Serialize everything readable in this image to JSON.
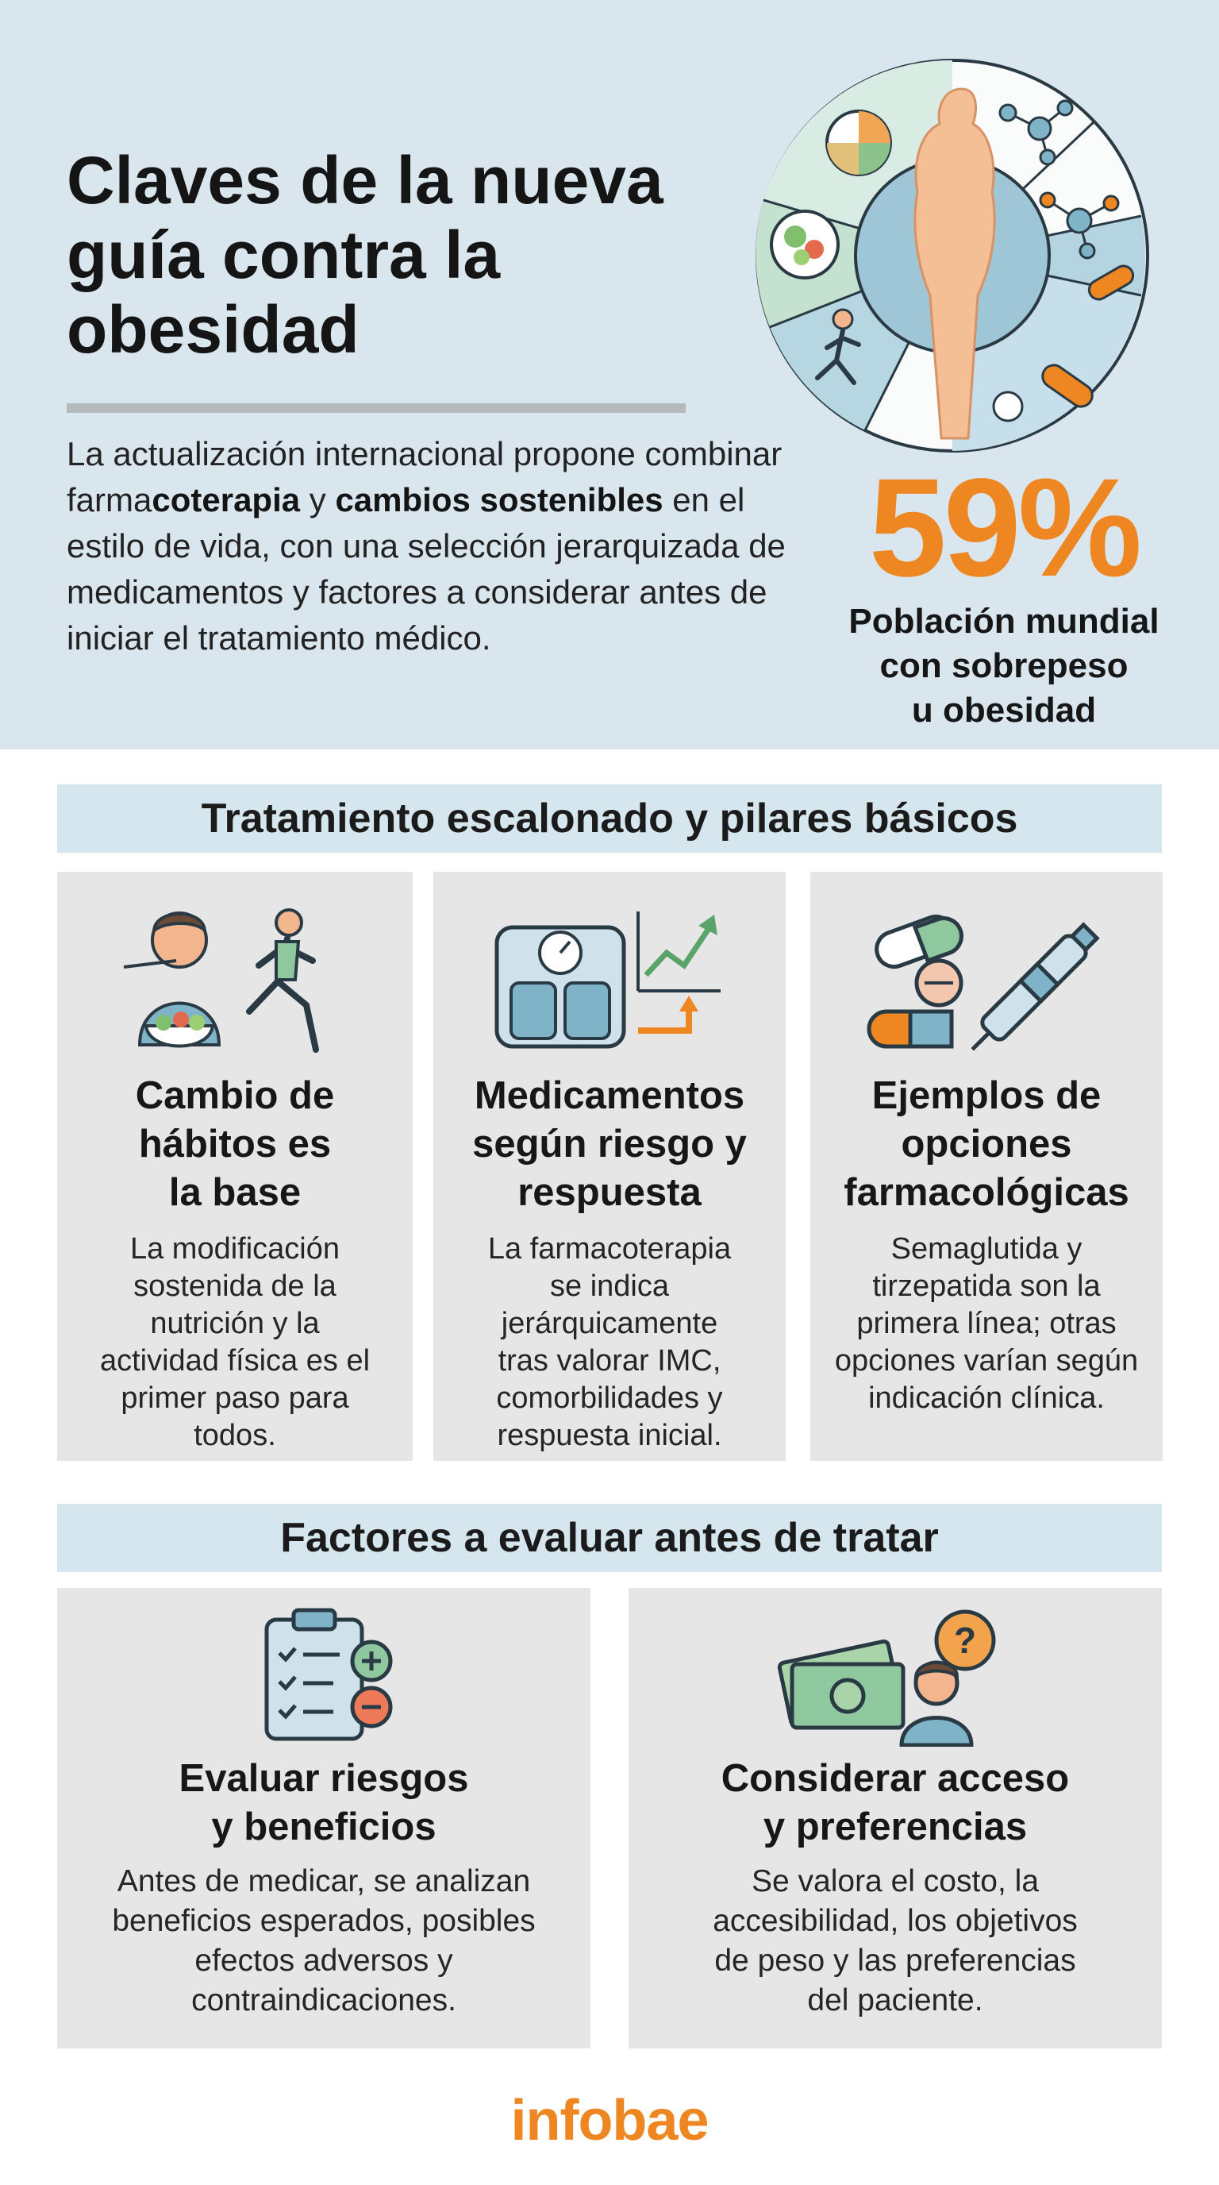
{
  "hero": {
    "title": "Claves de la nueva guía contra la obesidad",
    "body_parts": [
      {
        "text": "La actualización internacional propone combinar farma",
        "bold": false
      },
      {
        "text": "coterapia",
        "bold": true
      },
      {
        "text": " y ",
        "bold": false
      },
      {
        "text": "cambios sostenibles",
        "bold": true
      },
      {
        "text": " en el estilo de vida, con una selección jerarquizada de medicamentos y factores a considerar antes de iniciar el tratamiento médico.",
        "bold": false
      }
    ]
  },
  "stat": {
    "value": "59%",
    "label_lines": [
      "Población mundial",
      "con sobrepeso",
      "u obesidad"
    ]
  },
  "section1": {
    "heading": "Tratamiento escalonado y pilares básicos",
    "cards": [
      {
        "icon": "healthy-eating-and-running-icon",
        "title_lines": [
          "Cambio de",
          "hábitos es",
          "la base"
        ],
        "text_lines": [
          "La modificación",
          "sostenida de la",
          "nutrición y la",
          "actividad física es el",
          "primer paso para",
          "todos."
        ]
      },
      {
        "icon": "scale-and-growth-chart-icon",
        "title_lines": [
          "Medicamentos",
          "según riesgo y",
          "respuesta"
        ],
        "text_lines": [
          "La farmacoterapia",
          "se indica",
          "jerárquicamente",
          "tras valorar IMC,",
          "comorbilidades y",
          "respuesta inicial."
        ]
      },
      {
        "icon": "pills-and-injection-pen-icon",
        "title_lines": [
          "Ejemplos de",
          "opciones",
          "farmacológicas"
        ],
        "text_lines": [
          "Semaglutida y",
          "tirzepatida son la",
          "primera línea; otras",
          "opciones varían según",
          "indicación clínica."
        ]
      }
    ]
  },
  "section2": {
    "heading": "Factores a evaluar antes de tratar",
    "cards": [
      {
        "icon": "clipboard-plus-minus-icon",
        "title_lines": [
          "Evaluar riesgos",
          "y beneficios"
        ],
        "text_lines": [
          "Antes de medicar, se analizan",
          "beneficios esperados, posibles",
          "efectos adversos y",
          "contraindicaciones."
        ]
      },
      {
        "icon": "money-and-question-person-icon",
        "title_lines": [
          "Considerar acceso",
          "y preferencias"
        ],
        "text_lines": [
          "Se valora el costo, la",
          "accesibilidad, los objetivos",
          "de peso y las preferencias",
          "del paciente."
        ]
      }
    ]
  },
  "footer": {
    "brand": "infobae"
  },
  "colors": {
    "accent_orange": "#ee8622",
    "hero_bg": "#d9e6ee",
    "section_bar": "#d6e6ee",
    "card_bg": "#e6e6e6",
    "teal": "#7fb3c7",
    "green": "#8fc79e"
  }
}
